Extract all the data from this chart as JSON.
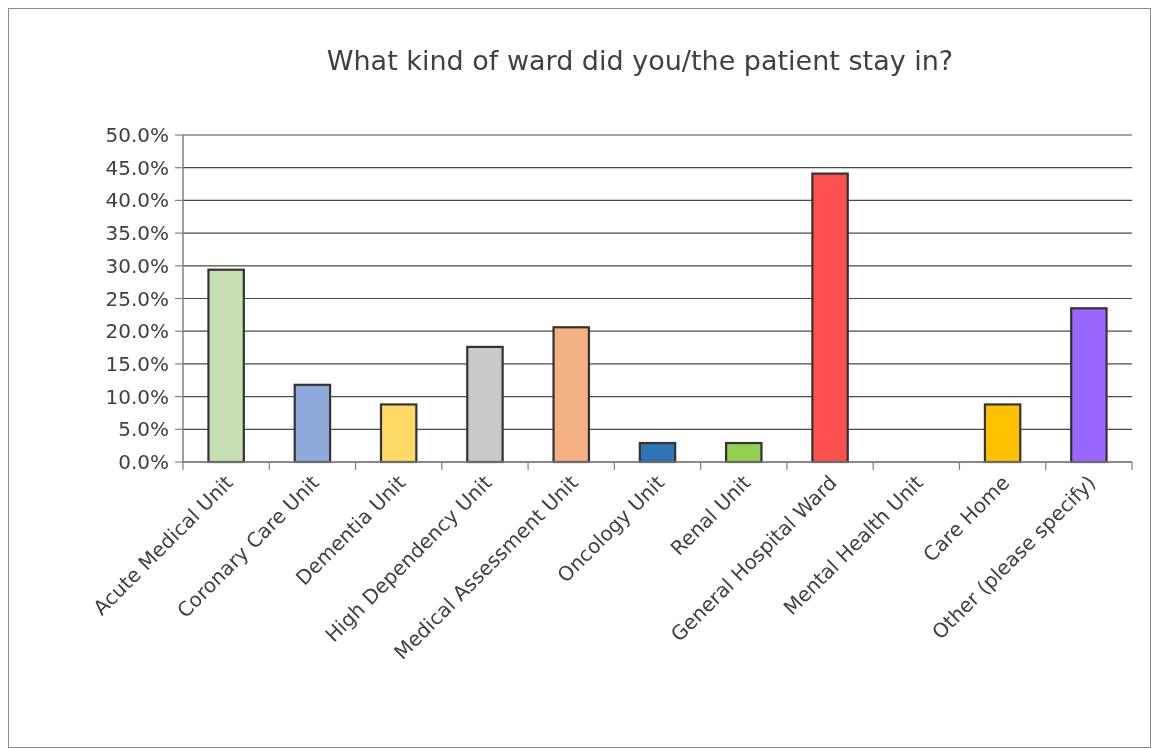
{
  "chart_data": {
    "type": "bar",
    "title": "What kind of ward did you/the patient stay in?",
    "categories": [
      "Acute Medical Unit",
      "Coronary Care Unit",
      "Dementia Unit",
      "High Dependency Unit",
      "Medical Assessment Unit",
      "Oncology Unit",
      "Renal Unit",
      "General Hospital Ward",
      "Mental Health Unit",
      "Care Home",
      "Other (please specify)"
    ],
    "values": [
      29.4,
      11.8,
      8.8,
      17.6,
      20.6,
      2.9,
      2.9,
      44.1,
      0,
      8.8,
      23.5
    ],
    "colors": [
      "#c6e0b4",
      "#8eaadb",
      "#ffd966",
      "#c9c9c9",
      "#f4b183",
      "#2e75b6",
      "#92d050",
      "#ff5050",
      null,
      "#ffc000",
      "#9966ff"
    ],
    "ylim": [
      0,
      50
    ],
    "yticks": [
      {
        "value": 0,
        "label": "0.0%"
      },
      {
        "value": 5,
        "label": "5.0%"
      },
      {
        "value": 10,
        "label": "10.0%"
      },
      {
        "value": 15,
        "label": "15.0%"
      },
      {
        "value": 20,
        "label": "20.0%"
      },
      {
        "value": 25,
        "label": "25.0%"
      },
      {
        "value": 30,
        "label": "30.0%"
      },
      {
        "value": 35,
        "label": "35.0%"
      },
      {
        "value": 40,
        "label": "40.0%"
      },
      {
        "value": 45,
        "label": "45.0%"
      },
      {
        "value": 50,
        "label": "50.0%"
      }
    ],
    "grid": "y"
  }
}
